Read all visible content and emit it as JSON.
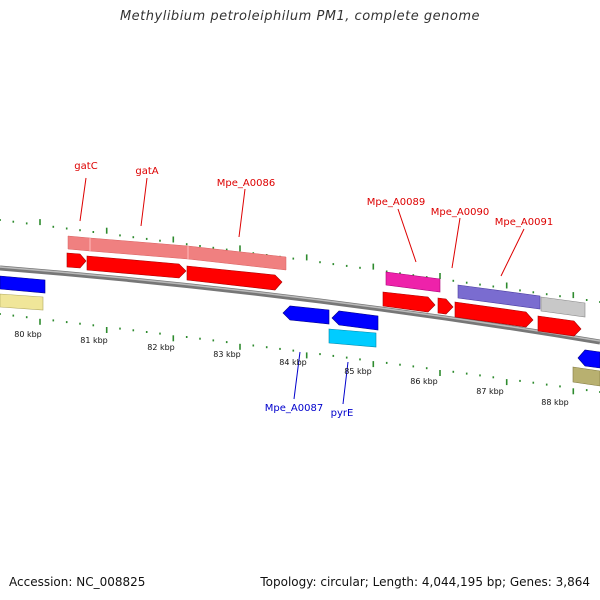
{
  "title": "Methylibium petroleiphilum PM1, complete genome",
  "footer": {
    "accession": "Accession: NC_008825",
    "info": "Topology: circular; Length: 4,044,195 bp; Genes: 3,864"
  },
  "ruler_labels": [
    "80 kbp",
    "81 kbp",
    "82 kbp",
    "83 kbp",
    "84 kbp",
    "85 kbp",
    "86 kbp",
    "87 kbp",
    "88 kbp"
  ],
  "gene_labels": {
    "forward": [
      "gatC",
      "gatA",
      "Mpe_A0086",
      "Mpe_A0089",
      "Mpe_A0090",
      "Mpe_A0091"
    ],
    "reverse": [
      "Mpe_A0087",
      "pyrE"
    ]
  },
  "colors": {
    "cds": "#ff0000",
    "gene": "#f08080",
    "reverse_gene": "#0000ff",
    "cyan_feature": "#00ccff",
    "magenta_feature": "#ee22aa",
    "purple_feature": "#7a6cd0",
    "grey_feature": "#c8c8c8",
    "yellow_feature": "#f0e699",
    "olive_feature": "#b8b070",
    "tick": "#2e8b2e",
    "backbone": "#888888"
  }
}
